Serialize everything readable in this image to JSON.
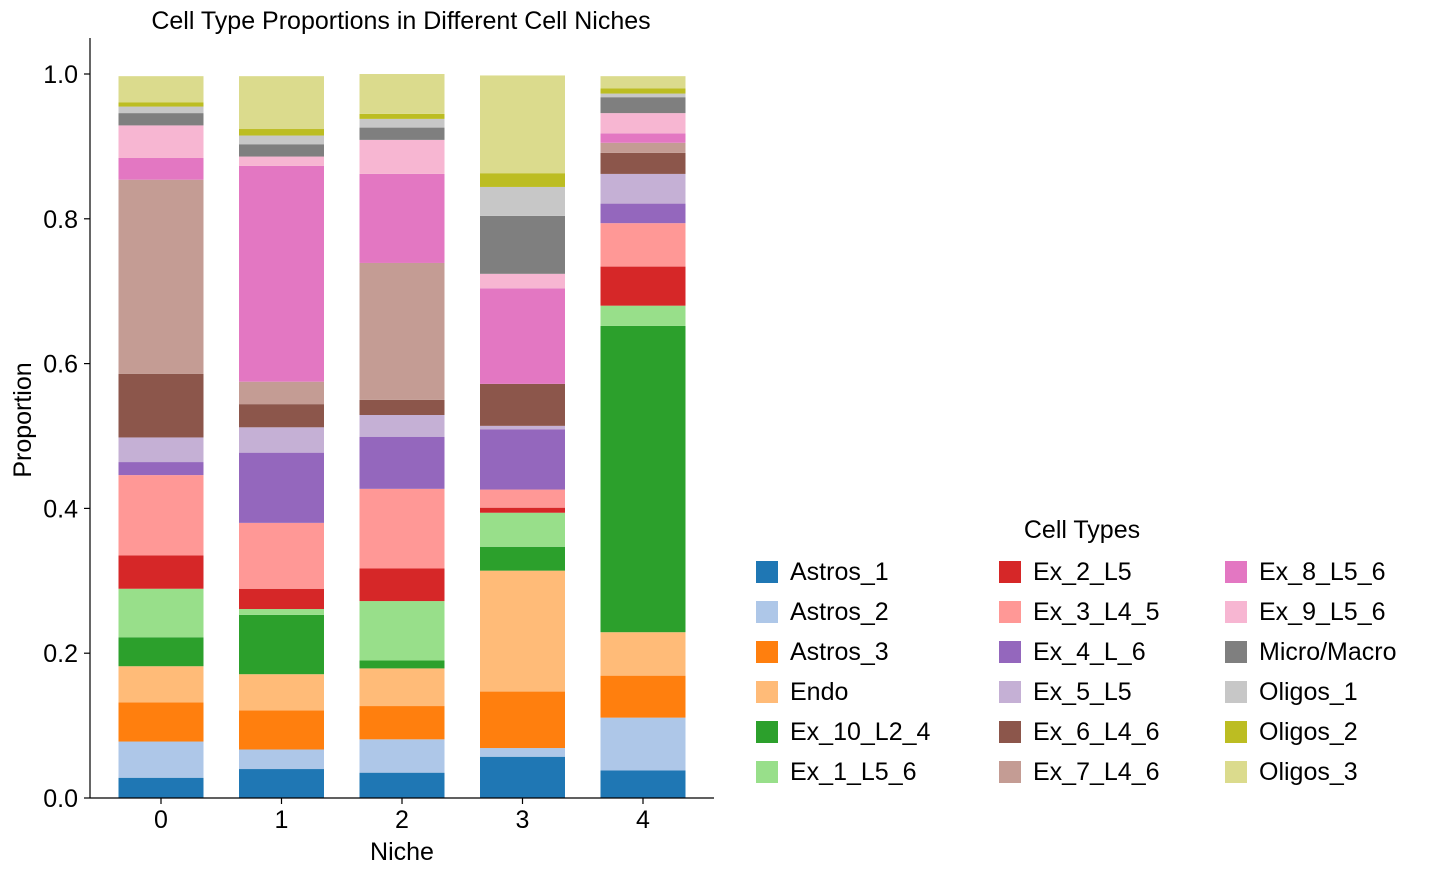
{
  "chart_data": {
    "type": "bar",
    "stacked": true,
    "title": "Cell Type Proportions in Different Cell Niches",
    "xlabel": "Niche",
    "ylabel": "Proportion",
    "ylim": [
      0,
      1.05
    ],
    "yticks": [
      "0.0",
      "0.2",
      "0.4",
      "0.6",
      "0.8",
      "1.0"
    ],
    "ytick_values": [
      0,
      0.2,
      0.4,
      0.6,
      0.8,
      1.0
    ],
    "categories": [
      "0",
      "1",
      "2",
      "3",
      "4"
    ],
    "grid": false,
    "legend": {
      "title": "Cell Types",
      "placement": "lower-right",
      "columns": 3
    },
    "series": [
      {
        "name": "Astros_1",
        "color": "#1f77b4",
        "values": [
          0.028,
          0.04,
          0.035,
          0.057,
          0.038
        ]
      },
      {
        "name": "Astros_2",
        "color": "#aec7e8",
        "values": [
          0.05,
          0.027,
          0.046,
          0.012,
          0.073
        ]
      },
      {
        "name": "Astros_3",
        "color": "#ff7f0e",
        "values": [
          0.054,
          0.054,
          0.046,
          0.078,
          0.058
        ]
      },
      {
        "name": "Endo",
        "color": "#ffbb78",
        "values": [
          0.05,
          0.05,
          0.052,
          0.167,
          0.06
        ]
      },
      {
        "name": "Ex_10_L2_4",
        "color": "#2ca02c",
        "values": [
          0.04,
          0.082,
          0.011,
          0.033,
          0.423
        ]
      },
      {
        "name": "Ex_1_L5_6",
        "color": "#98df8a",
        "values": [
          0.067,
          0.008,
          0.082,
          0.047,
          0.028
        ]
      },
      {
        "name": "Ex_2_L5",
        "color": "#d62728",
        "values": [
          0.046,
          0.028,
          0.045,
          0.007,
          0.054
        ]
      },
      {
        "name": "Ex_3_L4_5",
        "color": "#ff9896",
        "values": [
          0.111,
          0.091,
          0.11,
          0.025,
          0.06
        ]
      },
      {
        "name": "Ex_4_L_6",
        "color": "#9467bd",
        "values": [
          0.018,
          0.097,
          0.072,
          0.083,
          0.027
        ]
      },
      {
        "name": "Ex_5_L5",
        "color": "#c5b0d5",
        "values": [
          0.034,
          0.035,
          0.03,
          0.005,
          0.041
        ]
      },
      {
        "name": "Ex_6_L4_6",
        "color": "#8c564b",
        "values": [
          0.088,
          0.032,
          0.021,
          0.058,
          0.029
        ]
      },
      {
        "name": "Ex_7_L4_6",
        "color": "#c49c94",
        "values": [
          0.268,
          0.031,
          0.189,
          0.0,
          0.014
        ]
      },
      {
        "name": "Ex_8_L5_6",
        "color": "#e377c2",
        "values": [
          0.03,
          0.298,
          0.123,
          0.132,
          0.013
        ]
      },
      {
        "name": "Ex_9_L5_6",
        "color": "#f7b6d2",
        "values": [
          0.045,
          0.013,
          0.047,
          0.02,
          0.028
        ]
      },
      {
        "name": "Micro/Macro",
        "color": "#7f7f7f",
        "values": [
          0.017,
          0.017,
          0.017,
          0.08,
          0.022
        ]
      },
      {
        "name": "Oligos_1",
        "color": "#c7c7c7",
        "values": [
          0.009,
          0.012,
          0.012,
          0.04,
          0.005
        ]
      },
      {
        "name": "Oligos_2",
        "color": "#bcbd22",
        "values": [
          0.006,
          0.009,
          0.007,
          0.019,
          0.007
        ]
      },
      {
        "name": "Oligos_3",
        "color": "#dbdb8d",
        "values": [
          0.036,
          0.073,
          0.055,
          0.135,
          0.017
        ]
      }
    ]
  }
}
